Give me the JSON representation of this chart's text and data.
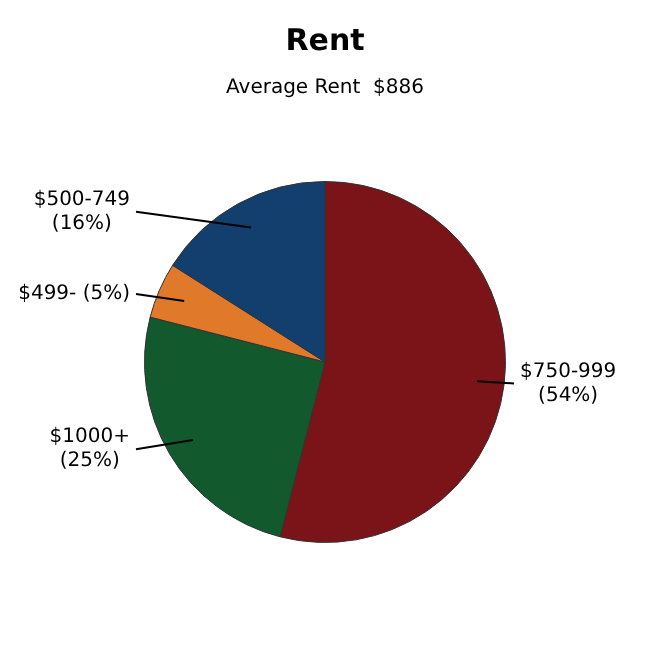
{
  "chart_data": {
    "type": "pie",
    "title": "Rent",
    "subtitle": "Average Rent  $886",
    "categories": [
      "$750-999",
      "$1000+",
      "$499-",
      "$500-749"
    ],
    "values": [
      54,
      25,
      5,
      16
    ],
    "colors": [
      "#7a1418",
      "#125a2e",
      "#e07a2a",
      "#123f6e"
    ],
    "value_labels": [
      "(54%)",
      "(25%)",
      "(5%)",
      "(16%)"
    ],
    "legend": false
  }
}
